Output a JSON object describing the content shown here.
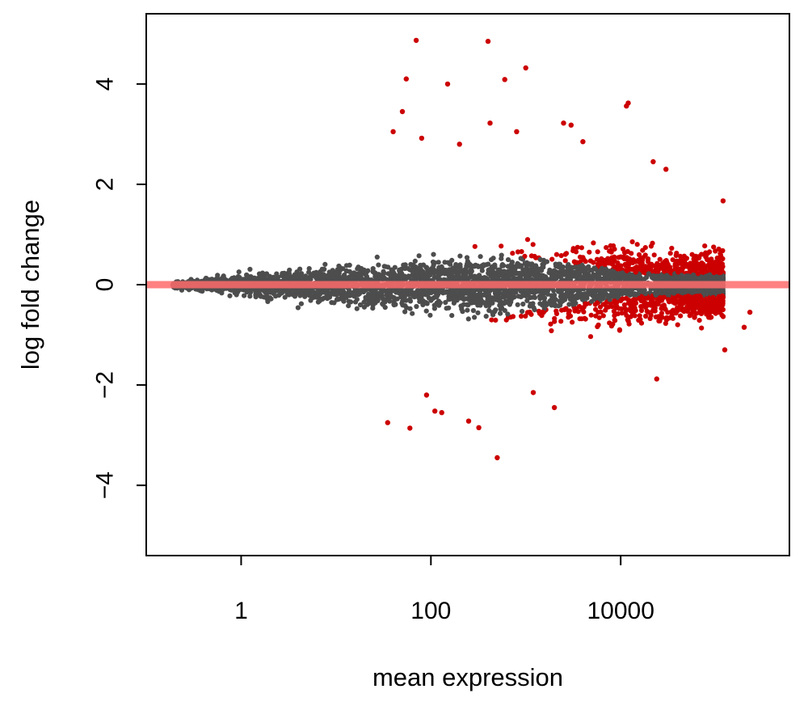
{
  "chart_data": {
    "type": "scatter",
    "title": "",
    "xlabel": "mean expression",
    "ylabel": "log fold change",
    "x_scale": "log10",
    "xlim": [
      0.1,
      600000
    ],
    "ylim": [
      -5.4,
      5.4
    ],
    "x_ticks": [
      1,
      100,
      10000
    ],
    "x_tick_labels": [
      "1",
      "100",
      "10000"
    ],
    "y_ticks": [
      -4,
      -2,
      0,
      2,
      4
    ],
    "y_tick_labels": [
      "−4",
      "−2",
      "0",
      "2",
      "4"
    ],
    "grid": false,
    "legend": "none",
    "reference_line": {
      "y": 0,
      "color": "#ff6b6b"
    },
    "colors": {
      "not_significant": "#4d4d4d",
      "significant": "#cc0000"
    },
    "highlighted_points": [
      {
        "x": 70,
        "y": 4.87
      },
      {
        "x": 400,
        "y": 4.85
      },
      {
        "x": 1000,
        "y": 4.32
      },
      {
        "x": 55,
        "y": 4.1
      },
      {
        "x": 600,
        "y": 4.09
      },
      {
        "x": 150,
        "y": 4.0
      },
      {
        "x": 12000,
        "y": 3.62
      },
      {
        "x": 11500,
        "y": 3.56
      },
      {
        "x": 50,
        "y": 3.45
      },
      {
        "x": 2500,
        "y": 3.22
      },
      {
        "x": 3000,
        "y": 3.18
      },
      {
        "x": 420,
        "y": 3.22
      },
      {
        "x": 40,
        "y": 3.05
      },
      {
        "x": 800,
        "y": 3.05
      },
      {
        "x": 80,
        "y": 2.92
      },
      {
        "x": 4000,
        "y": 2.85
      },
      {
        "x": 22000,
        "y": 2.45
      },
      {
        "x": 30000,
        "y": 2.3
      },
      {
        "x": 120000,
        "y": 1.67
      },
      {
        "x": 200,
        "y": 2.8
      },
      {
        "x": 500,
        "y": -3.45
      },
      {
        "x": 60,
        "y": -2.86
      },
      {
        "x": 35,
        "y": -2.75
      },
      {
        "x": 250,
        "y": -2.72
      },
      {
        "x": 320,
        "y": -2.85
      },
      {
        "x": 2000,
        "y": -2.45
      },
      {
        "x": 130,
        "y": -2.55
      },
      {
        "x": 110,
        "y": -2.52
      },
      {
        "x": 1200,
        "y": -2.15
      },
      {
        "x": 24000,
        "y": -1.88
      },
      {
        "x": 125000,
        "y": -1.3
      },
      {
        "x": 90,
        "y": -2.2
      },
      {
        "x": 200000,
        "y": -0.85
      },
      {
        "x": 230000,
        "y": -0.55
      },
      {
        "x": 60000,
        "y": -0.65
      }
    ]
  }
}
